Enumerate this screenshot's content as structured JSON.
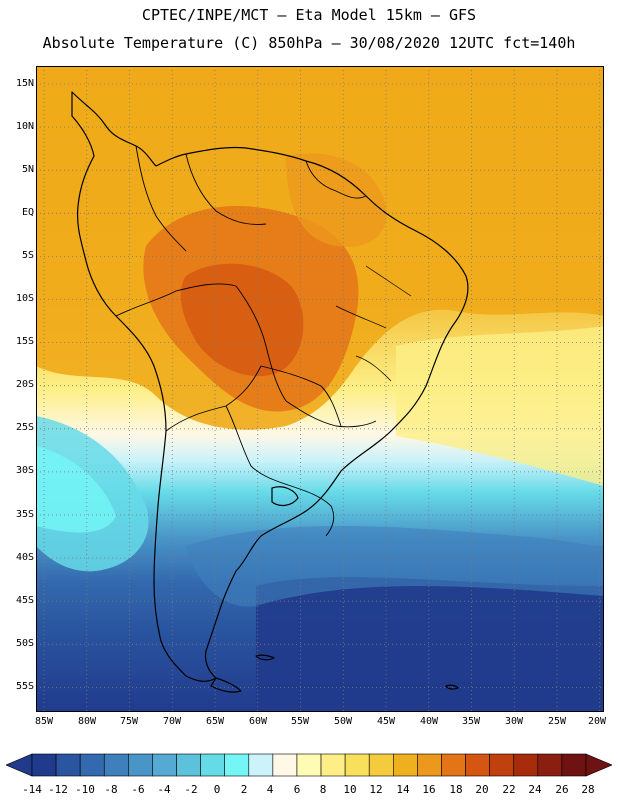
{
  "header": {
    "title_line1": "CPTEC/INPE/MCT –  Eta Model 15km – GFS",
    "title_line2": "Absolute Temperature (C) 850hPa – 30/08/2020 12UTC fct=140h"
  },
  "map": {
    "latitude_labels": [
      "15N",
      "10N",
      "5N",
      "EQ",
      "5S",
      "10S",
      "15S",
      "20S",
      "25S",
      "30S",
      "35S",
      "40S",
      "45S",
      "50S",
      "55S"
    ],
    "longitude_labels": [
      "85W",
      "80W",
      "75W",
      "70W",
      "65W",
      "60W",
      "55W",
      "50W",
      "45W",
      "40W",
      "35W",
      "30W",
      "25W",
      "20W"
    ]
  },
  "colorbar": {
    "labels": [
      "-14",
      "-12",
      "-10",
      "-8",
      "-6",
      "-4",
      "-2",
      "0",
      "2",
      "4",
      "6",
      "8",
      "10",
      "12",
      "14",
      "16",
      "18",
      "20",
      "22",
      "24",
      "26",
      "28"
    ],
    "colors": [
      "#213b8c",
      "#2a55a0",
      "#3369ae",
      "#3f80bc",
      "#4a95c8",
      "#55a9d2",
      "#5cc2dc",
      "#66dbe8",
      "#74f6f6",
      "#ccf2fa",
      "#fff8e6",
      "#fefcb4",
      "#fdef86",
      "#f9e05c",
      "#f3cb3c",
      "#efb020",
      "#ec981c",
      "#e47418",
      "#d45612",
      "#c0400e",
      "#a72c0c",
      "#8a1e10",
      "#6e1212"
    ]
  }
}
